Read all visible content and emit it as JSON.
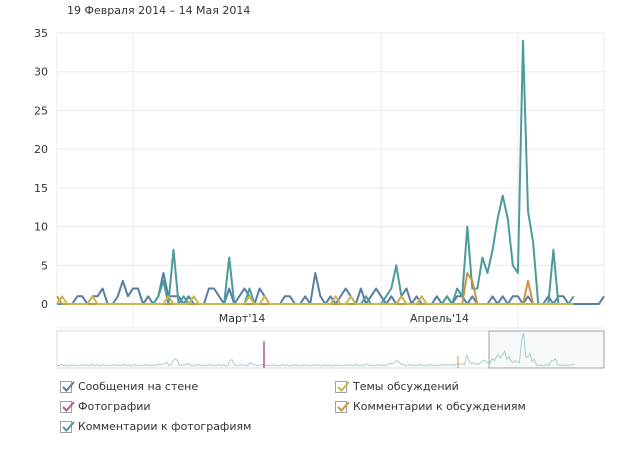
{
  "header": {
    "date_range": "19 Февраля 2014 – 14 Мая 2014"
  },
  "colors": {
    "wall_posts": "#597da3",
    "photos": "#b05c91",
    "photo_comments": "#4c9b9b",
    "topics": "#c7b84d",
    "topic_comments": "#c79744",
    "grid": "#e6eaee",
    "axis": "#d4d9de"
  },
  "legend": [
    {
      "label": "Сообщения на стене",
      "color": "#597da3",
      "checked": true
    },
    {
      "label": "Фотографии",
      "color": "#b05c91",
      "checked": true
    },
    {
      "label": "Комментарии к фотографиям",
      "color": "#4c9b9b",
      "checked": true
    },
    {
      "label": "Темы обсуждений",
      "color": "#c7b84d",
      "checked": true
    },
    {
      "label": "Комментарии к обсуждениям",
      "color": "#c79744",
      "checked": true
    }
  ],
  "chart_data": {
    "type": "line",
    "ylim": [
      0,
      35
    ],
    "yticks": [
      0,
      5,
      10,
      15,
      20,
      25,
      30,
      35
    ],
    "x_tick_labels": [
      "Март'14",
      "Апрель'14"
    ],
    "grid": true,
    "series": [
      {
        "name": "Сообщения на стене",
        "color": "#597da3",
        "values": [
          0,
          0,
          0,
          0,
          1,
          1,
          0,
          1,
          1,
          2,
          0,
          0,
          1,
          3,
          1,
          2,
          2,
          0,
          1,
          0,
          1,
          4,
          1,
          1,
          1,
          0,
          1,
          0,
          0,
          0,
          2,
          2,
          1,
          0,
          2,
          0,
          1,
          2,
          1,
          0,
          2,
          1,
          0,
          0,
          0,
          1,
          1,
          0,
          0,
          1,
          0,
          4,
          1,
          0,
          1,
          0,
          1,
          2,
          1,
          0,
          2,
          0,
          1,
          2,
          1,
          0,
          1,
          0,
          1,
          2,
          0,
          1,
          0,
          0,
          0,
          1,
          0,
          1,
          0,
          1,
          1,
          0,
          1,
          0,
          0,
          0,
          1,
          0,
          1,
          0,
          1,
          1,
          0,
          1,
          0,
          0,
          0,
          1,
          0,
          1,
          1,
          0,
          0,
          0,
          0,
          0,
          0,
          0,
          1
        ]
      },
      {
        "name": "Комментарии к фотографиям",
        "color": "#4c9b9b",
        "values": [
          0,
          0,
          0,
          0,
          0,
          0,
          0,
          0,
          0,
          0,
          0,
          0,
          0,
          0,
          0,
          0,
          0,
          0,
          0,
          0,
          1,
          3,
          0,
          7,
          0,
          1,
          0,
          0,
          0,
          0,
          0,
          0,
          0,
          0,
          6,
          0,
          0,
          0,
          2,
          0,
          0,
          0,
          0,
          0,
          0,
          0,
          0,
          0,
          0,
          0,
          0,
          0,
          0,
          0,
          0,
          0,
          0,
          0,
          0,
          0,
          0,
          1,
          0,
          0,
          0,
          1,
          2,
          5,
          1,
          0,
          0,
          0,
          0,
          0,
          0,
          0,
          0,
          1,
          0,
          2,
          1,
          10,
          2,
          2,
          6,
          4,
          7,
          11,
          14,
          11,
          5,
          4,
          34,
          12,
          8,
          0,
          0,
          0,
          7,
          0,
          0,
          0,
          1
        ]
      },
      {
        "name": "Комментарии к обсуждениям",
        "color": "#c79744",
        "values": [
          1,
          0,
          0,
          0,
          0,
          0,
          0,
          0,
          0,
          0,
          0,
          0,
          0,
          0,
          0,
          0,
          0,
          0,
          0,
          0,
          0,
          0,
          0,
          0,
          0,
          0,
          0,
          0,
          0,
          0,
          0,
          0,
          0,
          0,
          0,
          0,
          0,
          0,
          0,
          0,
          0,
          0,
          0,
          0,
          0,
          0,
          0,
          0,
          0,
          0,
          0,
          0,
          0,
          0,
          0,
          0,
          0,
          0,
          0,
          0,
          0,
          0,
          0,
          0,
          0,
          0,
          0,
          0,
          0,
          0,
          0,
          0,
          0,
          0,
          0,
          0,
          0,
          0,
          0,
          0,
          0,
          4,
          3,
          0,
          0,
          0,
          0,
          0,
          0,
          0,
          0,
          0,
          0,
          3,
          0,
          0,
          0,
          0,
          0,
          0,
          0,
          0,
          0
        ]
      },
      {
        "name": "Темы обсуждений",
        "color": "#c7b84d",
        "values": [
          0,
          1,
          0,
          0,
          0,
          0,
          0,
          1,
          0,
          0,
          0,
          0,
          0,
          0,
          0,
          0,
          0,
          0,
          0,
          0,
          0,
          0,
          1,
          0,
          0,
          0,
          0,
          1,
          0,
          0,
          0,
          0,
          0,
          0,
          0,
          0,
          0,
          0,
          1,
          0,
          0,
          1,
          0,
          0,
          0,
          0,
          0,
          0,
          0,
          0,
          0,
          0,
          0,
          0,
          0,
          1,
          0,
          0,
          1,
          0,
          0,
          0,
          0,
          0,
          0,
          0,
          0,
          0,
          1,
          0,
          0,
          0,
          1,
          0,
          0,
          0,
          0,
          0,
          0,
          0,
          0,
          0,
          0,
          0,
          0,
          0,
          0,
          0,
          0,
          0,
          0,
          0,
          0,
          0,
          0,
          0,
          0,
          0,
          0,
          0,
          0,
          0,
          0
        ]
      }
    ]
  }
}
